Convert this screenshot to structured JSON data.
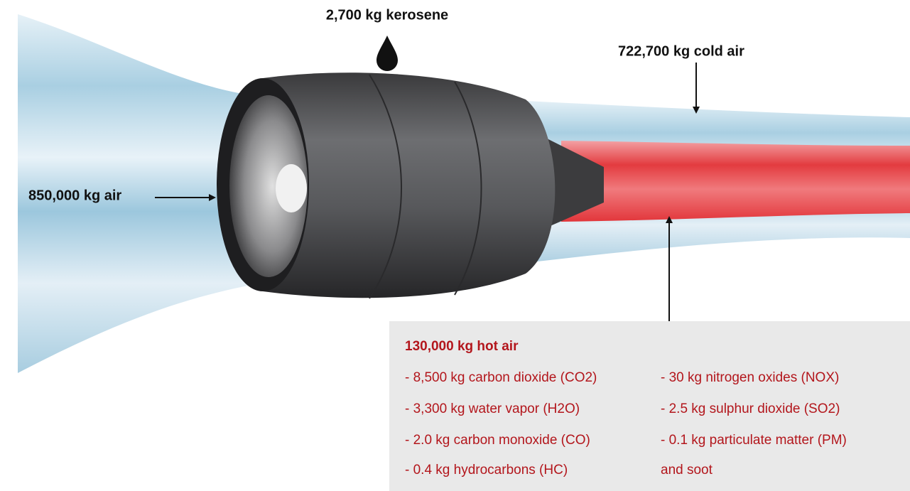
{
  "labels": {
    "kerosene": "2,700 kg kerosene",
    "cold_air": "722,700 kg cold air",
    "air_in": "850,000 kg air"
  },
  "hot_air_box": {
    "title": "130,000 kg hot air",
    "left_items": [
      "- 8,500 kg carbon dioxide (CO2)",
      "- 3,300 kg water vapor (H2O)",
      "- 2.0 kg carbon monoxide (CO)",
      "- 0.4 kg hydrocarbons (HC)"
    ],
    "right_items": [
      "- 30 kg nitrogen oxides (NOX)",
      "- 2.5 kg sulphur dioxide (SO2)",
      "- 0.1 kg particulate matter (PM)",
      "and soot"
    ]
  }
}
